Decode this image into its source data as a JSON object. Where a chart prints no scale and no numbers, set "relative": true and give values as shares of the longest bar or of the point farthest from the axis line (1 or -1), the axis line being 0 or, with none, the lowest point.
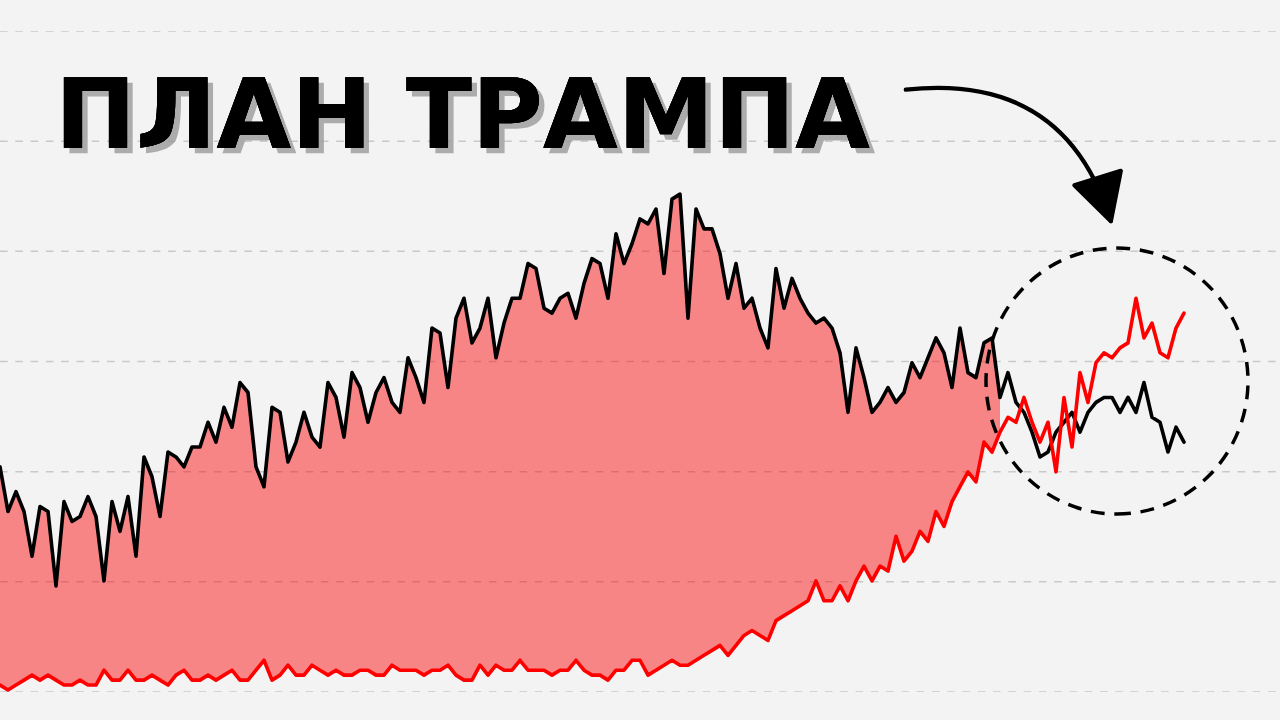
{
  "chart_data": {
    "type": "line",
    "title": "ПЛАН ТРАМПА",
    "relative": true,
    "grid": "y",
    "categories": [
      null,
      null,
      null,
      null,
      null,
      null,
      null,
      null,
      null,
      null,
      null,
      null,
      null,
      null,
      null,
      null,
      null,
      null,
      null,
      null,
      null,
      null,
      null,
      null,
      null,
      null,
      null,
      null,
      null,
      null,
      null,
      null,
      null,
      null,
      null,
      null,
      null,
      null,
      null,
      null,
      null,
      null,
      null,
      null,
      null,
      null,
      null,
      null,
      null,
      null,
      null,
      null,
      null,
      null,
      null,
      null,
      null,
      null,
      null,
      null,
      null,
      null,
      null,
      null,
      null,
      null,
      null,
      null,
      null,
      null,
      null,
      null,
      null,
      null,
      null,
      null,
      null,
      null,
      null,
      null,
      null,
      null,
      null,
      null,
      null,
      null,
      null,
      null,
      null,
      null,
      null,
      null,
      null,
      null,
      null,
      null,
      null,
      null,
      null,
      null,
      null,
      null,
      null,
      null,
      null,
      null,
      null,
      null,
      null,
      null,
      null,
      null,
      null,
      null,
      null,
      null,
      null,
      null,
      null,
      null,
      null,
      null,
      null,
      null,
      null,
      null,
      null,
      null,
      null,
      null,
      null,
      null,
      null,
      null,
      null,
      null,
      null,
      null,
      null,
      null,
      null,
      null,
      null,
      null,
      null,
      null,
      null,
      null,
      null
    ],
    "series": [
      {
        "color": "#000000",
        "values": [
          0.45,
          0.36,
          0.4,
          0.36,
          0.27,
          0.37,
          0.36,
          0.21,
          0.38,
          0.34,
          0.35,
          0.39,
          0.35,
          0.22,
          0.38,
          0.32,
          0.39,
          0.27,
          0.47,
          0.43,
          0.35,
          0.48,
          0.47,
          0.45,
          0.49,
          0.49,
          0.54,
          0.5,
          0.57,
          0.53,
          0.62,
          0.6,
          0.45,
          0.41,
          0.57,
          0.56,
          0.46,
          0.5,
          0.56,
          0.51,
          0.49,
          0.62,
          0.59,
          0.51,
          0.64,
          0.61,
          0.54,
          0.6,
          0.63,
          0.58,
          0.56,
          0.67,
          0.63,
          0.58,
          0.73,
          0.72,
          0.61,
          0.75,
          0.79,
          0.7,
          0.73,
          0.79,
          0.67,
          0.74,
          0.79,
          0.79,
          0.86,
          0.85,
          0.77,
          0.76,
          0.79,
          0.8,
          0.75,
          0.82,
          0.87,
          0.86,
          0.79,
          0.92,
          0.86,
          0.9,
          0.95,
          0.94,
          0.97,
          0.84,
          0.99,
          1.0,
          0.75,
          0.97,
          0.93,
          0.93,
          0.88,
          0.79,
          0.86,
          0.77,
          0.79,
          0.73,
          0.69,
          0.85,
          0.77,
          0.83,
          0.79,
          0.76,
          0.74,
          0.75,
          0.73,
          0.68,
          0.56,
          0.69,
          0.63,
          0.56,
          0.58,
          0.61,
          0.58,
          0.6,
          0.66,
          0.63,
          0.67,
          0.71,
          0.68,
          0.61,
          0.73,
          0.64,
          0.63,
          0.7,
          0.71,
          0.59,
          0.64,
          0.58,
          0.56,
          0.52,
          0.47,
          0.48,
          0.52,
          0.54,
          0.56,
          0.52,
          0.56,
          0.58,
          0.59,
          0.59,
          0.56,
          0.59,
          0.56,
          0.62,
          0.55,
          0.54,
          0.48,
          0.53,
          0.5
        ]
      },
      {
        "color": "#ff0000",
        "values": [
          0.01,
          0.0,
          0.01,
          0.02,
          0.03,
          0.02,
          0.03,
          0.02,
          0.01,
          0.01,
          0.02,
          0.01,
          0.01,
          0.04,
          0.02,
          0.02,
          0.04,
          0.02,
          0.02,
          0.03,
          0.02,
          0.01,
          0.03,
          0.04,
          0.02,
          0.02,
          0.03,
          0.02,
          0.03,
          0.04,
          0.02,
          0.02,
          0.04,
          0.06,
          0.02,
          0.03,
          0.05,
          0.03,
          0.03,
          0.05,
          0.04,
          0.03,
          0.04,
          0.03,
          0.03,
          0.04,
          0.04,
          0.03,
          0.03,
          0.05,
          0.04,
          0.04,
          0.04,
          0.03,
          0.04,
          0.04,
          0.05,
          0.03,
          0.02,
          0.02,
          0.05,
          0.03,
          0.05,
          0.04,
          0.04,
          0.06,
          0.04,
          0.04,
          0.04,
          0.03,
          0.04,
          0.04,
          0.06,
          0.04,
          0.03,
          0.03,
          0.02,
          0.04,
          0.04,
          0.06,
          0.06,
          0.03,
          0.04,
          0.05,
          0.06,
          0.05,
          0.05,
          0.06,
          0.07,
          0.08,
          0.09,
          0.07,
          0.09,
          0.11,
          0.12,
          0.11,
          0.1,
          0.14,
          0.15,
          0.16,
          0.17,
          0.18,
          0.22,
          0.18,
          0.18,
          0.21,
          0.18,
          0.22,
          0.25,
          0.22,
          0.25,
          0.24,
          0.31,
          0.26,
          0.28,
          0.32,
          0.3,
          0.36,
          0.33,
          0.38,
          0.41,
          0.44,
          0.42,
          0.5,
          0.48,
          0.52,
          0.55,
          0.54,
          0.59,
          0.54,
          0.5,
          0.54,
          0.44,
          0.59,
          0.49,
          0.64,
          0.58,
          0.66,
          0.68,
          0.67,
          0.69,
          0.7,
          0.79,
          0.71,
          0.74,
          0.68,
          0.67,
          0.73,
          0.76
        ],
        "lower": [
          0.01,
          0.0,
          0.01,
          0.02,
          0.03,
          0.02,
          0.03,
          0.02,
          0.01,
          0.01,
          0.02,
          0.01,
          0.01,
          0.04,
          0.02,
          0.02,
          0.04,
          0.02,
          0.02,
          0.03,
          0.02,
          0.01,
          0.03,
          0.04,
          0.02,
          0.02,
          0.03,
          0.02,
          0.03,
          0.04,
          0.02,
          0.02,
          0.04,
          0.06,
          0.02,
          0.03,
          0.05,
          0.03,
          0.03,
          0.05,
          0.04,
          0.03,
          0.04,
          0.03,
          0.03,
          0.04,
          0.04,
          0.03,
          0.03,
          0.05,
          0.04,
          0.04,
          0.04,
          0.03,
          0.04,
          0.04,
          0.05,
          0.03,
          0.02,
          0.02,
          0.05,
          0.03,
          0.05,
          0.04,
          0.04,
          0.06,
          0.04,
          0.04,
          0.04,
          0.03,
          0.04,
          0.04,
          0.06,
          0.04,
          0.03,
          0.03,
          0.02,
          0.04,
          0.04,
          0.06,
          0.06,
          0.03,
          0.04,
          0.05,
          0.06,
          0.05,
          0.05,
          0.06,
          0.07,
          0.08,
          0.09,
          0.07,
          0.09,
          0.11,
          0.12,
          0.11,
          0.1,
          0.14,
          0.15,
          0.16,
          0.17,
          0.18,
          0.22,
          0.18,
          0.18,
          0.21,
          0.18,
          0.22,
          0.25,
          0.22,
          0.25,
          0.24,
          0.31,
          0.26,
          0.28,
          0.32,
          0.3,
          0.36,
          0.33,
          0.38,
          0.41,
          0.44,
          0.42,
          0.5,
          0.48,
          0.52,
          null,
          null,
          null,
          null,
          null,
          null,
          null,
          null,
          null,
          null,
          null,
          null,
          null,
          null,
          null,
          null,
          null,
          null,
          null,
          null,
          null,
          null,
          null
        ],
        "upper": [
          0.45,
          0.36,
          0.4,
          0.36,
          0.27,
          0.37,
          0.36,
          0.21,
          0.38,
          0.34,
          0.35,
          0.39,
          0.35,
          0.22,
          0.38,
          0.32,
          0.39,
          0.27,
          0.47,
          0.43,
          0.35,
          0.48,
          0.47,
          0.45,
          0.49,
          0.49,
          0.54,
          0.5,
          0.57,
          0.53,
          0.62,
          0.6,
          0.45,
          0.41,
          0.57,
          0.56,
          0.46,
          0.5,
          0.56,
          0.51,
          0.49,
          0.62,
          0.59,
          0.51,
          0.64,
          0.61,
          0.54,
          0.6,
          0.63,
          0.58,
          0.56,
          0.67,
          0.63,
          0.58,
          0.73,
          0.72,
          0.61,
          0.75,
          0.79,
          0.7,
          0.73,
          0.79,
          0.67,
          0.74,
          0.79,
          0.79,
          0.86,
          0.85,
          0.77,
          0.76,
          0.79,
          0.8,
          0.75,
          0.82,
          0.87,
          0.86,
          0.79,
          0.92,
          0.86,
          0.9,
          0.95,
          0.94,
          0.97,
          0.84,
          0.99,
          1.0,
          0.75,
          0.97,
          0.93,
          0.93,
          0.88,
          0.79,
          0.86,
          0.77,
          0.79,
          0.73,
          0.69,
          0.85,
          0.77,
          0.83,
          0.79,
          0.76,
          0.74,
          0.75,
          0.73,
          0.68,
          0.56,
          0.69,
          0.63,
          0.56,
          0.58,
          0.61,
          0.58,
          0.6,
          0.66,
          0.63,
          0.67,
          0.71,
          0.68,
          0.61,
          0.73,
          0.64,
          0.63,
          0.7,
          0.71,
          0.59,
          null,
          null,
          null,
          null,
          null,
          null,
          null,
          null,
          null,
          null,
          null,
          null,
          null,
          null,
          null,
          null,
          null,
          null,
          null,
          null,
          null,
          null,
          null
        ]
      }
    ]
  }
}
